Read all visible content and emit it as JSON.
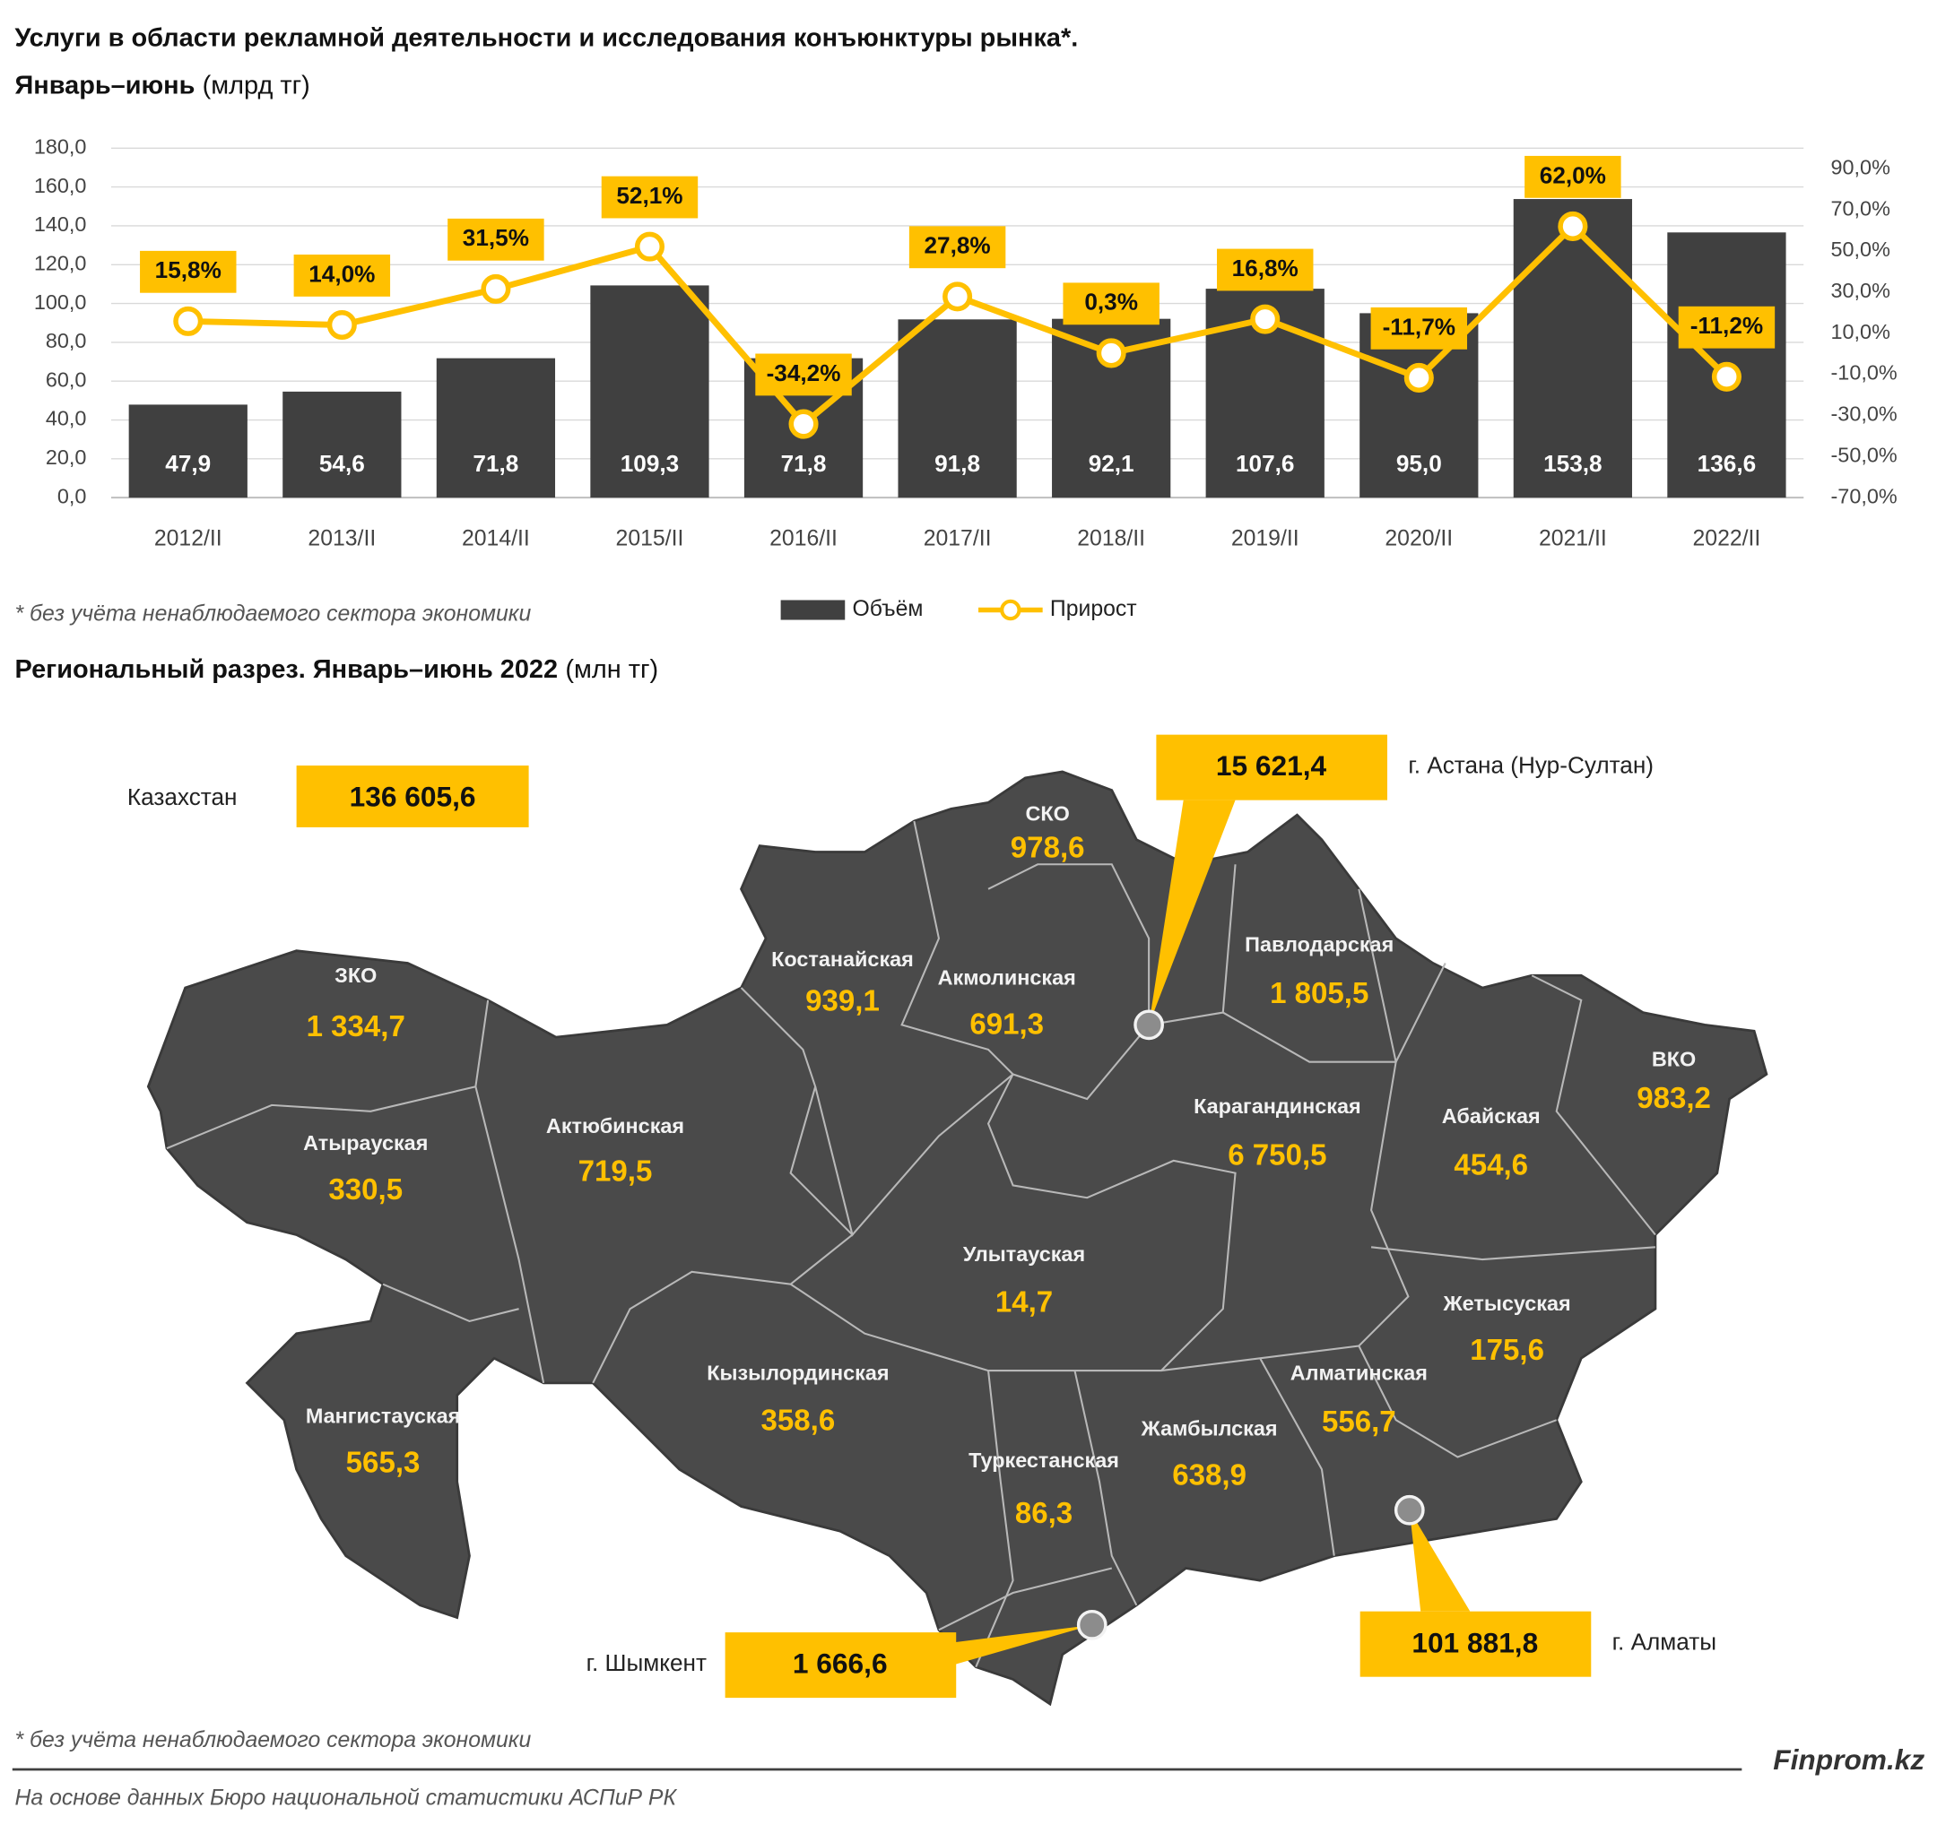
{
  "chart_data": {
    "type": "combo",
    "title": "Услуги в области рекламной деятельности и исследования конъюнктуры рынка*.",
    "subtitle": "Январь–июнь",
    "unit": "(млрд тг)",
    "categories": [
      "2012/II",
      "2013/II",
      "2014/II",
      "2015/II",
      "2016/II",
      "2017/II",
      "2018/II",
      "2019/II",
      "2020/II",
      "2021/II",
      "2022/II"
    ],
    "series": [
      {
        "name": "Объём",
        "type": "bar",
        "color": "#404040",
        "values": [
          47.9,
          54.6,
          71.8,
          109.3,
          71.8,
          91.8,
          92.1,
          107.6,
          95.0,
          153.8,
          136.6
        ],
        "value_labels": [
          "47,9",
          "54,6",
          "71,8",
          "109,3",
          "71,8",
          "91,8",
          "92,1",
          "107,6",
          "95,0",
          "153,8",
          "136,6"
        ]
      },
      {
        "name": "Прирост",
        "type": "line",
        "axis": "y2",
        "color": "#FFC000",
        "values": [
          15.8,
          14.0,
          31.5,
          52.1,
          -34.2,
          27.8,
          0.3,
          16.8,
          -11.7,
          62.0,
          -11.2
        ],
        "value_labels": [
          "15,8%",
          "14,0%",
          "31,5%",
          "52,1%",
          "-34,2%",
          "27,8%",
          "0,3%",
          "16,8%",
          "-11,7%",
          "62,0%",
          "-11,2%"
        ]
      }
    ],
    "ylim": [
      0,
      180
    ],
    "yticks": [
      {
        "value": 0,
        "label": "0,0"
      },
      {
        "value": 20,
        "label": "20,0"
      },
      {
        "value": 40,
        "label": "40,0"
      },
      {
        "value": 60,
        "label": "60,0"
      },
      {
        "value": 80,
        "label": "80,0"
      },
      {
        "value": 100,
        "label": "100,0"
      },
      {
        "value": 120,
        "label": "120,0"
      },
      {
        "value": 140,
        "label": "140,0"
      },
      {
        "value": 160,
        "label": "160,0"
      },
      {
        "value": 180,
        "label": "180,0"
      }
    ],
    "y2lim": [
      -70,
      100
    ],
    "y2ticks": [
      {
        "value": -70,
        "label": "-70,0%"
      },
      {
        "value": -50,
        "label": "-50,0%"
      },
      {
        "value": -30,
        "label": "-30,0%"
      },
      {
        "value": -10,
        "label": "-10,0%"
      },
      {
        "value": 10,
        "label": "10,0%"
      },
      {
        "value": 30,
        "label": "30,0%"
      },
      {
        "value": 50,
        "label": "50,0%"
      },
      {
        "value": 70,
        "label": "70,0%"
      },
      {
        "value": 90,
        "label": "90,0%"
      }
    ],
    "grid": true,
    "legend": "bottom",
    "footnote": "* без учёта ненаблюдаемого сектора экономики"
  },
  "map": {
    "title": "Региональный разрез. Январь–июнь 2022",
    "unit": "(млн тг)",
    "total": {
      "label": "Казахстан",
      "value": "136 605,6"
    },
    "regions": [
      {
        "name": "СКО",
        "value": "978,6"
      },
      {
        "name": "Костанайская",
        "value": "939,1"
      },
      {
        "name": "Акмолинская",
        "value": "691,3"
      },
      {
        "name": "Павлодарская",
        "value": "1 805,5"
      },
      {
        "name": "ЗКО",
        "value": "1 334,7"
      },
      {
        "name": "Атырауская",
        "value": "330,5"
      },
      {
        "name": "Актюбинская",
        "value": "719,5"
      },
      {
        "name": "Карагандинская",
        "value": "6 750,5"
      },
      {
        "name": "Абайская",
        "value": "454,6"
      },
      {
        "name": "ВКО",
        "value": "983,2"
      },
      {
        "name": "Улытауская",
        "value": "14,7"
      },
      {
        "name": "Жетысуская",
        "value": "175,6"
      },
      {
        "name": "Кызылординская",
        "value": "358,6"
      },
      {
        "name": "Алматинская",
        "value": "556,7"
      },
      {
        "name": "Мангистауская",
        "value": "565,3"
      },
      {
        "name": "Жамбылская",
        "value": "638,9"
      },
      {
        "name": "Туркестанская",
        "value": "86,3"
      }
    ],
    "cities": [
      {
        "name": "г. Астана (Нур-Султан)",
        "value": "15 621,4"
      },
      {
        "name": "г. Алматы",
        "value": "101 881,8"
      },
      {
        "name": "г. Шымкент",
        "value": "1 666,6"
      }
    ],
    "footnote": "* без учёта ненаблюдаемого сектора экономики"
  },
  "source": "На основе данных Бюро национальной статистики АСПиР РК",
  "brand": "Finprom.kz"
}
